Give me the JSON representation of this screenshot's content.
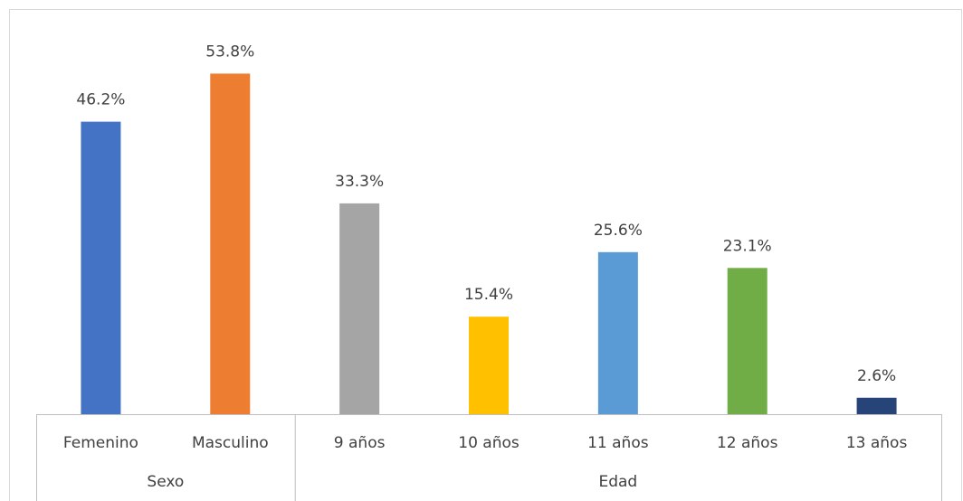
{
  "chart_data": {
    "type": "bar",
    "ylim": [
      0,
      60
    ],
    "groups": [
      {
        "name": "Sexo",
        "categories": [
          "Femenino",
          "Masculino"
        ],
        "values": [
          46.2,
          53.8
        ],
        "value_labels": [
          "46.2%",
          "53.8%"
        ],
        "colors": [
          "#4472c4",
          "#ed7d31"
        ]
      },
      {
        "name": "Edad",
        "categories": [
          "9 años",
          "10 años",
          "11 años",
          "12 años",
          "13 años"
        ],
        "values": [
          33.3,
          15.4,
          25.6,
          23.1,
          2.6
        ],
        "value_labels": [
          "33.3%",
          "15.4%",
          "25.6%",
          "23.1%",
          "2.6%"
        ],
        "colors": [
          "#a5a5a5",
          "#ffc000",
          "#5b9bd5",
          "#70ad47",
          "#264478"
        ]
      }
    ]
  }
}
